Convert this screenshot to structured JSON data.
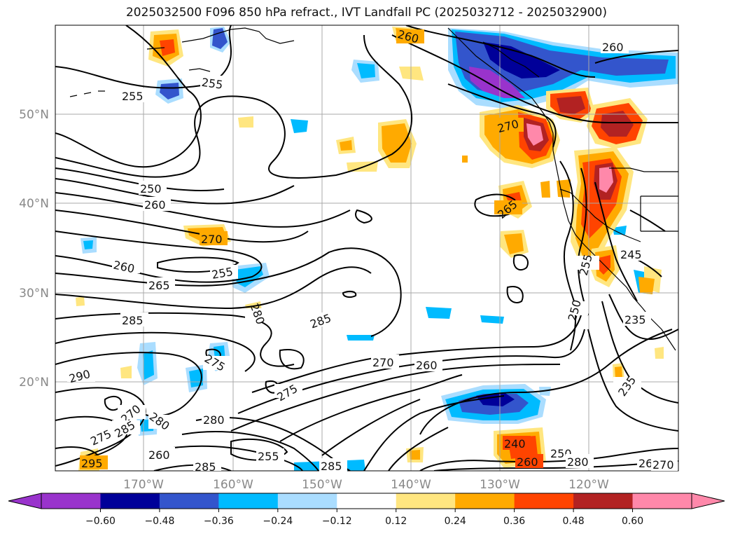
{
  "title": "2025032500 F096 850 hPa refract., IVT Landfall PC (2025032712 - 2025032900)",
  "lat_labels": [
    "50°N",
    "40°N",
    "30°N",
    "20°N"
  ],
  "lon_labels": [
    "170°W",
    "160°W",
    "150°W",
    "140°W",
    "130°W",
    "120°W"
  ],
  "colorbar": {
    "ticks": [
      "−0.60",
      "−0.48",
      "−0.36",
      "−0.24",
      "−0.12",
      "0.12",
      "0.24",
      "0.36",
      "0.48",
      "0.60"
    ],
    "colors": [
      "#9933cc",
      "#000099",
      "#3355cc",
      "#00bbff",
      "#aaddff",
      "#ffffff",
      "#ffe680",
      "#ffaa00",
      "#ff4400",
      "#b22222",
      "#ff88aa"
    ]
  },
  "contour_labels": [
    "255",
    "255",
    "250",
    "260",
    "270",
    "260",
    "255",
    "265",
    "285",
    "280",
    "290",
    "275",
    "275",
    "270",
    "285",
    "280",
    "280",
    "285",
    "275",
    "260",
    "260",
    "285",
    "270",
    "260",
    "270",
    "265",
    "250",
    "255",
    "235",
    "235",
    "245",
    "240",
    "250",
    "265",
    "270",
    "260",
    "295",
    "285",
    "260",
    "280",
    "255"
  ],
  "colors": {
    "gridline": "#a9a9a9",
    "tick_label": "#888888"
  }
}
